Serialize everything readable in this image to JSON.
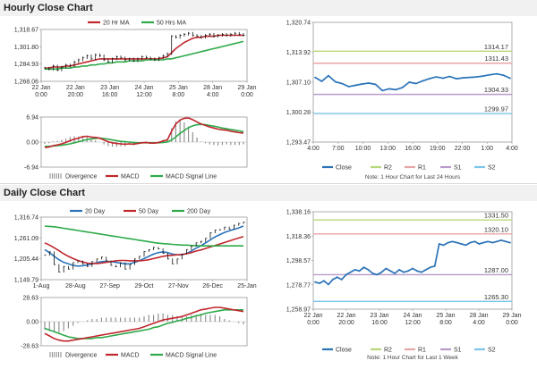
{
  "sections": {
    "hourly_title": "Hourly Close Chart",
    "daily_title": "Daily Close Chart"
  },
  "colors": {
    "close": "#2a73b8",
    "ma_fast": "#c0272d",
    "ma_slow": "#2eaa4a",
    "divergence": "#888888",
    "macd": "#c0272d",
    "signal": "#2eaa4a",
    "r2": "#b7d87a",
    "r1": "#e8a5a5",
    "s1": "#b79ac8",
    "s2": "#7cc4e8",
    "price": "#111111"
  },
  "chart_data": [
    {
      "id": "hourly-price",
      "type": "line",
      "legend": [
        "20 Hr MA",
        "50 Hrs MA"
      ],
      "yticks": [
        "1,318.67",
        "1,301.80",
        "1,284.93",
        "1,268.06"
      ],
      "ylim": [
        1268.06,
        1318.67
      ],
      "xticks": [
        "22 Jan\n0:00",
        "22 Jan\n20:00",
        "23 Jan\n16:00",
        "24 Jan\n12:00",
        "25 Jan\n8:00",
        "28 Jan\n4:00",
        "29 Jan\n0:00"
      ],
      "series": [
        {
          "name": "Close",
          "role": "price",
          "values": [
            1281,
            1280,
            1283,
            1279,
            1282,
            1284,
            1283,
            1287,
            1289,
            1291,
            1293,
            1290,
            1294,
            1293,
            1289,
            1287,
            1290,
            1292,
            1291,
            1289,
            1290,
            1288,
            1290,
            1292,
            1291,
            1290,
            1289,
            1291,
            1293,
            1295,
            1312,
            1311,
            1313,
            1314,
            1315,
            1313,
            1312,
            1311,
            1313,
            1314,
            1312,
            1313,
            1314,
            1313,
            1314,
            1315,
            1314,
            1313
          ]
        },
        {
          "name": "20 Hr MA",
          "role": "ma_fast",
          "values": [
            1281,
            1281,
            1282,
            1282,
            1282,
            1283,
            1283,
            1284,
            1285,
            1286,
            1287,
            1288,
            1289,
            1290,
            1290,
            1290,
            1290,
            1290,
            1290,
            1290,
            1290,
            1290,
            1290,
            1290,
            1290,
            1290,
            1290,
            1290,
            1291,
            1292,
            1296,
            1300,
            1303,
            1306,
            1308,
            1310,
            1311,
            1311,
            1312,
            1312,
            1312,
            1313,
            1313,
            1313,
            1313,
            1313,
            1313,
            1313
          ]
        },
        {
          "name": "50 Hrs MA",
          "role": "ma_slow",
          "values": [
            1280,
            1280,
            1280,
            1280,
            1281,
            1281,
            1281,
            1282,
            1282,
            1283,
            1283,
            1284,
            1284,
            1285,
            1285,
            1286,
            1286,
            1287,
            1287,
            1287,
            1288,
            1288,
            1288,
            1288,
            1289,
            1289,
            1289,
            1289,
            1289,
            1290,
            1290,
            1291,
            1292,
            1293,
            1294,
            1295,
            1296,
            1297,
            1298,
            1299,
            1300,
            1301,
            1302,
            1303,
            1304,
            1305,
            1306,
            1307
          ]
        }
      ]
    },
    {
      "id": "hourly-macd",
      "type": "line",
      "legend": [
        "Divergence",
        "MACD",
        "MACD Signal Line"
      ],
      "yticks": [
        "6.94",
        "0.00",
        "-6.94"
      ],
      "ylim": [
        -6.94,
        6.94
      ],
      "series": [
        {
          "name": "MACD",
          "role": "macd",
          "values": [
            -1.5,
            -1.4,
            -1.0,
            -0.8,
            -0.5,
            -0.1,
            0.4,
            0.8,
            1.1,
            1.5,
            1.6,
            1.4,
            1.3,
            1.1,
            0.6,
            0.1,
            -0.2,
            -0.4,
            -0.5,
            -0.6,
            -0.5,
            -0.6,
            -0.4,
            -0.2,
            -0.1,
            -0.3,
            -0.3,
            -0.1,
            0.3,
            0.6,
            3.0,
            5.0,
            6.1,
            6.6,
            6.7,
            6.2,
            5.6,
            5.0,
            4.6,
            4.2,
            3.9,
            3.6,
            3.4,
            3.3,
            3.0,
            2.8,
            2.6,
            2.5
          ]
        },
        {
          "name": "MACD Signal Line",
          "role": "signal",
          "values": [
            -1.2,
            -1.2,
            -1.1,
            -1.0,
            -0.9,
            -0.7,
            -0.5,
            -0.2,
            0.1,
            0.4,
            0.7,
            0.9,
            1.0,
            1.1,
            1.0,
            0.8,
            0.6,
            0.4,
            0.2,
            0.1,
            0.0,
            -0.1,
            -0.2,
            -0.2,
            -0.2,
            -0.2,
            -0.2,
            -0.2,
            -0.1,
            0.0,
            0.6,
            1.4,
            2.4,
            3.2,
            4.0,
            4.5,
            4.8,
            4.9,
            4.8,
            4.6,
            4.4,
            4.2,
            3.9,
            3.7,
            3.5,
            3.3,
            3.1,
            2.9
          ]
        }
      ]
    },
    {
      "id": "hourly-pivot",
      "type": "line",
      "legend": [
        "Close",
        "R2",
        "R1",
        "S1",
        "S2"
      ],
      "note": "Note: 1 Hour Chart for Last 24 Hours",
      "yticks": [
        "1,320.74",
        "1,313.92",
        "1,307.10",
        "1,300.28",
        "1,293.47"
      ],
      "ylim": [
        1293.47,
        1320.74
      ],
      "xticks": [
        "4:00",
        "7:00",
        "10:00",
        "13:00",
        "16:00",
        "19:00",
        "22:00",
        "1:00",
        "4:00"
      ],
      "levels": [
        {
          "name": "R2",
          "value": 1314.17,
          "label": "1314.17"
        },
        {
          "name": "R1",
          "value": 1311.43,
          "label": "1311.43"
        },
        {
          "name": "S1",
          "value": 1304.33,
          "label": "1304.33"
        },
        {
          "name": "S2",
          "value": 1299.97,
          "label": "1299.97"
        }
      ],
      "values": [
        1308.2,
        1307.3,
        1308.6,
        1307.2,
        1306.8,
        1306.1,
        1306.4,
        1306.7,
        1306.9,
        1306.6,
        1305.2,
        1305.6,
        1305.4,
        1305.9,
        1307.1,
        1306.8,
        1307.4,
        1307.9,
        1308.3,
        1308.0,
        1308.4,
        1307.9,
        1308.1,
        1308.2,
        1308.3,
        1308.5,
        1308.8,
        1309.0,
        1308.7,
        1308.0
      ]
    },
    {
      "id": "daily-price",
      "type": "line",
      "legend": [
        "20 Day",
        "50 Day",
        "200 Day"
      ],
      "yticks": [
        "1,316.74",
        "1,261.09",
        "1,205.44",
        "1,149.79"
      ],
      "ylim": [
        1149.79,
        1316.74
      ],
      "xticks": [
        "1-Aug",
        "28-Aug",
        "27-Sep",
        "29-Oct",
        "27-Nov",
        "26-Dec",
        "25-Jan"
      ],
      "series": [
        {
          "name": "Close",
          "role": "price",
          "values": [
            1215,
            1224,
            1190,
            1170,
            1185,
            1178,
            1195,
            1200,
            1192,
            1185,
            1198,
            1205,
            1210,
            1200,
            1188,
            1184,
            1195,
            1178,
            1190,
            1205,
            1212,
            1225,
            1230,
            1236,
            1232,
            1220,
            1205,
            1192,
            1205,
            1218,
            1230,
            1240,
            1248,
            1252,
            1260,
            1275,
            1282,
            1283,
            1290,
            1285,
            1295,
            1300,
            1303
          ]
        },
        {
          "name": "20 Day",
          "role": "close",
          "values": [
            1230,
            1222,
            1212,
            1203,
            1196,
            1192,
            1188,
            1186,
            1187,
            1189,
            1192,
            1195,
            1198,
            1199,
            1198,
            1196,
            1194,
            1192,
            1192,
            1196,
            1200,
            1206,
            1212,
            1218,
            1222,
            1224,
            1222,
            1218,
            1216,
            1216,
            1220,
            1226,
            1234,
            1240,
            1248,
            1256,
            1264,
            1270,
            1276,
            1280,
            1284,
            1288,
            1293
          ]
        },
        {
          "name": "50 Day",
          "role": "ma_fast",
          "values": [
            1248,
            1242,
            1235,
            1227,
            1219,
            1212,
            1206,
            1201,
            1197,
            1194,
            1193,
            1193,
            1194,
            1196,
            1198,
            1200,
            1201,
            1201,
            1200,
            1200,
            1200,
            1201,
            1203,
            1206,
            1209,
            1212,
            1214,
            1215,
            1216,
            1217,
            1219,
            1222,
            1226,
            1229,
            1233,
            1237,
            1241,
            1245,
            1249,
            1253,
            1257,
            1261,
            1265
          ]
        },
        {
          "name": "200 Day",
          "role": "ma_slow",
          "values": [
            1293,
            1292,
            1291,
            1289,
            1287,
            1285,
            1283,
            1281,
            1279,
            1277,
            1275,
            1273,
            1271,
            1269,
            1267,
            1265,
            1263,
            1261,
            1259,
            1257,
            1255,
            1253,
            1251,
            1249,
            1247,
            1246,
            1245,
            1244,
            1243,
            1242,
            1242,
            1241,
            1241,
            1240,
            1240,
            1240,
            1240,
            1240,
            1240,
            1240,
            1240,
            1240,
            1240
          ]
        }
      ]
    },
    {
      "id": "daily-macd",
      "type": "line",
      "legend": [
        "Divergence",
        "MACD",
        "MACD Signal Line"
      ],
      "yticks": [
        "28.63",
        "0.00",
        "-28.63"
      ],
      "ylim": [
        -28.63,
        28.63
      ],
      "series": [
        {
          "name": "MACD",
          "role": "macd",
          "values": [
            -14,
            -17,
            -20,
            -22,
            -23,
            -23,
            -22,
            -21,
            -20,
            -19,
            -18,
            -17,
            -16,
            -15,
            -14,
            -13,
            -12,
            -11,
            -10,
            -9,
            -8,
            -6,
            -4,
            -2,
            0,
            2,
            3,
            4,
            5,
            6,
            8,
            10,
            12,
            14,
            15,
            16,
            17,
            17,
            16,
            15,
            14,
            13,
            12
          ]
        },
        {
          "name": "MACD Signal Line",
          "role": "signal",
          "values": [
            -8,
            -10,
            -12,
            -14,
            -16,
            -18,
            -19,
            -20,
            -20,
            -20,
            -20,
            -19,
            -19,
            -18,
            -17,
            -16,
            -15,
            -14,
            -13,
            -12,
            -11,
            -10,
            -9,
            -7,
            -6,
            -4,
            -2,
            -1,
            1,
            2,
            4,
            5,
            7,
            8,
            10,
            11,
            12,
            13,
            14,
            14,
            14,
            14,
            14
          ]
        }
      ]
    },
    {
      "id": "daily-pivot",
      "type": "line",
      "legend": [
        "Close",
        "R2",
        "R1",
        "S1",
        "S2"
      ],
      "note": "Note: 1 Hour Chart for Last 1 Week",
      "yticks": [
        "1,338.16",
        "1,318.36",
        "1,298.57",
        "1,278.77",
        "1,258.97"
      ],
      "ylim": [
        1258.97,
        1338.16
      ],
      "xticks": [
        "22 Jan\n0:00",
        "22 Jan\n20:00",
        "23 Jan\n16:00",
        "24 Jan\n12:00",
        "25 Jan\n8:00",
        "28 Jan\n4:00",
        "29 Jan\n0:00"
      ],
      "levels": [
        {
          "name": "R2",
          "value": 1331.5,
          "label": "1331.50"
        },
        {
          "name": "R1",
          "value": 1320.1,
          "label": "1320.10"
        },
        {
          "name": "S1",
          "value": 1287.0,
          "label": "1287.00"
        },
        {
          "name": "S2",
          "value": 1265.3,
          "label": "1265.30"
        }
      ],
      "values": [
        1281,
        1280,
        1282,
        1279,
        1283,
        1285,
        1283,
        1287,
        1289,
        1291,
        1290,
        1293,
        1291,
        1288,
        1287,
        1289,
        1292,
        1290,
        1288,
        1291,
        1289,
        1290,
        1292,
        1290,
        1289,
        1291,
        1293,
        1294,
        1312,
        1311,
        1313,
        1314,
        1313,
        1312,
        1311,
        1313,
        1314,
        1312,
        1313,
        1314,
        1313,
        1314,
        1315,
        1314,
        1313
      ]
    }
  ]
}
